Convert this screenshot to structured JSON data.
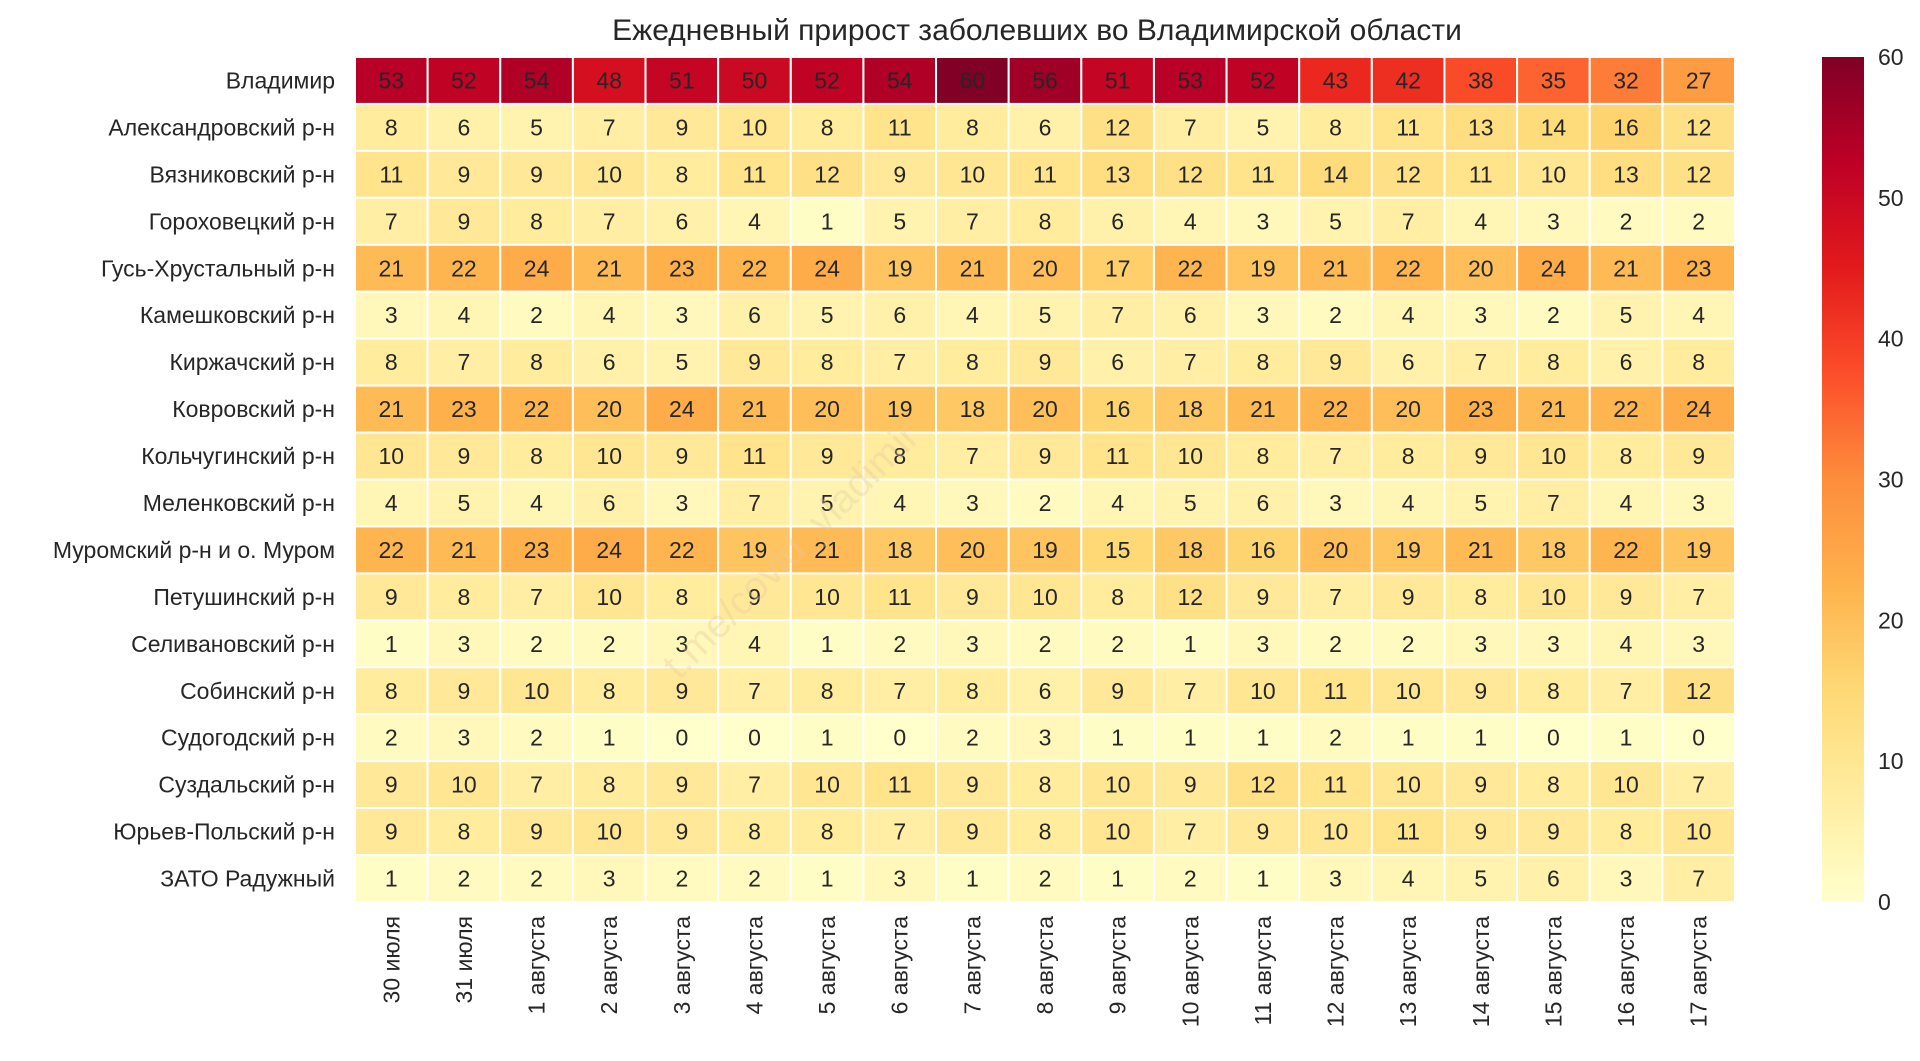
{
  "chart_data": {
    "type": "heatmap",
    "title": "Ежедневный прирост заболевших во Владимирской области",
    "rows": [
      "Владимир",
      "Александровский р-н",
      "Вязниковский р-н",
      "Гороховецкий р-н",
      "Гусь-Хрустальный р-н",
      "Камешковский р-н",
      "Киржачский р-н",
      "Ковровский р-н",
      "Кольчугинский р-н",
      "Меленковский р-н",
      "Муромский р-н и о. Муром",
      "Петушинский р-н",
      "Селивановский р-н",
      "Собинский р-н",
      "Судогодский р-н",
      "Суздальский р-н",
      "Юрьев-Польский р-н",
      "ЗАТО Радужный"
    ],
    "columns": [
      "30 июля",
      "31 июля",
      "1 августа",
      "2 августа",
      "3 августа",
      "4 августа",
      "5 августа",
      "6 августа",
      "7 августа",
      "8 августа",
      "9 августа",
      "10 августа",
      "11 августа",
      "12 августа",
      "13 августа",
      "14 августа",
      "15 августа",
      "16 августа",
      "17 августа"
    ],
    "values": [
      [
        53,
        52,
        54,
        48,
        51,
        50,
        52,
        54,
        60,
        56,
        51,
        53,
        52,
        43,
        42,
        38,
        35,
        32,
        27
      ],
      [
        8,
        6,
        5,
        7,
        9,
        10,
        8,
        11,
        8,
        6,
        12,
        7,
        5,
        8,
        11,
        13,
        14,
        16,
        12
      ],
      [
        11,
        9,
        9,
        10,
        8,
        11,
        12,
        9,
        10,
        11,
        13,
        12,
        11,
        14,
        12,
        11,
        10,
        13,
        12
      ],
      [
        7,
        9,
        8,
        7,
        6,
        4,
        1,
        5,
        7,
        8,
        6,
        4,
        3,
        5,
        7,
        4,
        3,
        2,
        2
      ],
      [
        21,
        22,
        24,
        21,
        23,
        22,
        24,
        19,
        21,
        20,
        17,
        22,
        19,
        21,
        22,
        20,
        24,
        21,
        23
      ],
      [
        3,
        4,
        2,
        4,
        3,
        6,
        5,
        6,
        4,
        5,
        7,
        6,
        3,
        2,
        4,
        3,
        2,
        5,
        4
      ],
      [
        8,
        7,
        8,
        6,
        5,
        9,
        8,
        7,
        8,
        9,
        6,
        7,
        8,
        9,
        6,
        7,
        8,
        6,
        8
      ],
      [
        21,
        23,
        22,
        20,
        24,
        21,
        20,
        19,
        18,
        20,
        16,
        18,
        21,
        22,
        20,
        23,
        21,
        22,
        24
      ],
      [
        10,
        9,
        8,
        10,
        9,
        11,
        9,
        8,
        7,
        9,
        11,
        10,
        8,
        7,
        8,
        9,
        10,
        8,
        9
      ],
      [
        4,
        5,
        4,
        6,
        3,
        7,
        5,
        4,
        3,
        2,
        4,
        5,
        6,
        3,
        4,
        5,
        7,
        4,
        3
      ],
      [
        22,
        21,
        23,
        24,
        22,
        19,
        21,
        18,
        20,
        19,
        15,
        18,
        16,
        20,
        19,
        21,
        18,
        22,
        19
      ],
      [
        9,
        8,
        7,
        10,
        8,
        9,
        10,
        11,
        9,
        10,
        8,
        12,
        9,
        7,
        9,
        8,
        10,
        9,
        7
      ],
      [
        1,
        3,
        2,
        2,
        3,
        4,
        1,
        2,
        3,
        2,
        2,
        1,
        3,
        2,
        2,
        3,
        3,
        4,
        3
      ],
      [
        8,
        9,
        10,
        8,
        9,
        7,
        8,
        7,
        8,
        6,
        9,
        7,
        10,
        11,
        10,
        9,
        8,
        7,
        12
      ],
      [
        2,
        3,
        2,
        1,
        0,
        0,
        1,
        0,
        2,
        3,
        1,
        1,
        1,
        2,
        1,
        1,
        0,
        1,
        0
      ],
      [
        9,
        10,
        7,
        8,
        9,
        7,
        10,
        11,
        9,
        8,
        10,
        9,
        12,
        11,
        10,
        9,
        8,
        10,
        7
      ],
      [
        9,
        8,
        9,
        10,
        9,
        8,
        8,
        7,
        9,
        8,
        10,
        7,
        9,
        10,
        11,
        9,
        9,
        8,
        10
      ],
      [
        1,
        2,
        2,
        3,
        2,
        2,
        1,
        3,
        1,
        2,
        1,
        2,
        1,
        3,
        4,
        5,
        6,
        3,
        7
      ]
    ],
    "colorbar": {
      "min": 0,
      "max": 60,
      "ticks": [
        0,
        10,
        20,
        30,
        40,
        50,
        60
      ]
    },
    "colormap": [
      "#ffffcc",
      "#ffeda0",
      "#fed976",
      "#feb24c",
      "#fd8d3c",
      "#fc4e2a",
      "#e31a1c",
      "#bd0026",
      "#800026"
    ],
    "watermark": "t.me/covid_vladimir"
  }
}
